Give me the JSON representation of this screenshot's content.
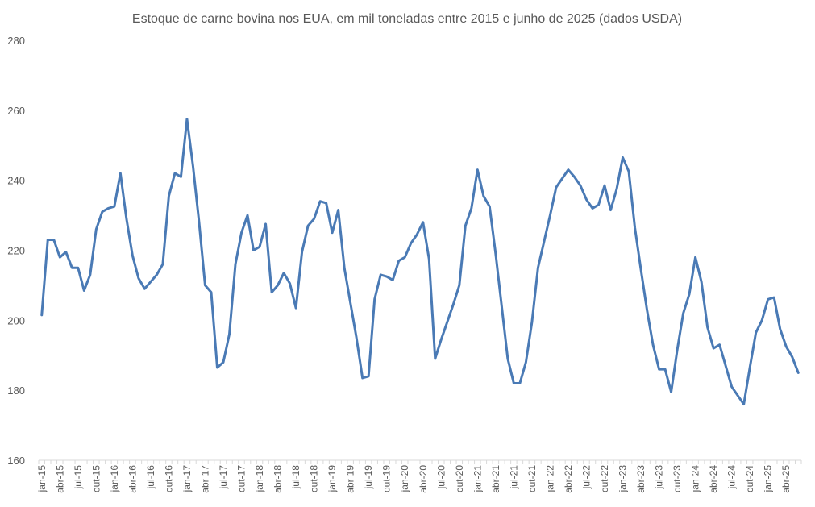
{
  "chart_data": {
    "type": "line",
    "title": "Estoque de carne bovina nos EUA, em mil toneladas entre 2015 e junho de 2025 (dados USDA)",
    "xlabel": "",
    "ylabel": "",
    "ylim": [
      160,
      280
    ],
    "yticks": [
      160,
      180,
      200,
      220,
      240,
      260,
      280
    ],
    "grid": false,
    "legend": "none",
    "line_color": "#4a7ab5",
    "x_tick_labels": [
      "jan-15",
      "abr-15",
      "jul-15",
      "out-15",
      "jan-16",
      "abr-16",
      "jul-16",
      "out-16",
      "jan-17",
      "abr-17",
      "jul-17",
      "out-17",
      "jan-18",
      "abr-18",
      "jul-18",
      "out-18",
      "jan-19",
      "abr-19",
      "jul-19",
      "out-19",
      "jan-20",
      "abr-20",
      "jul-20",
      "out-20",
      "jan-21",
      "abr-21",
      "jul-21",
      "out-21",
      "jan-22",
      "abr-22",
      "jul-22",
      "out-22",
      "jan-23",
      "abr-23",
      "jul-23",
      "out-23",
      "jan-24",
      "abr-24",
      "jul-24",
      "out-24",
      "jan-25",
      "abr-25"
    ],
    "series": [
      {
        "values": [
          201.5,
          223,
          223,
          218,
          219.5,
          215,
          215,
          208.5,
          213,
          226,
          231,
          232,
          232.5,
          242,
          229,
          218.5,
          212,
          209,
          211,
          213,
          216,
          235.5,
          242,
          241,
          257.5,
          244,
          228,
          210,
          208,
          186.5,
          188,
          196,
          216,
          225,
          230,
          220,
          221,
          227.5,
          208,
          210,
          213.5,
          210.5,
          203.5,
          219.5,
          227,
          229,
          234,
          233.5,
          225,
          231.5,
          215,
          205,
          195,
          183.5,
          184,
          206,
          213,
          212.5,
          211.5,
          217,
          218,
          222,
          224.5,
          228,
          217.5,
          189,
          194.5,
          199.5,
          204.5,
          210,
          227,
          232,
          243,
          235.5,
          232.5,
          219,
          204,
          189,
          182,
          182,
          188,
          199.5,
          215,
          222.5,
          230,
          238,
          240.5,
          243,
          241,
          238.5,
          234.5,
          232,
          233,
          238.5,
          231.5,
          237.5,
          246.5,
          242.5,
          226.5,
          214.5,
          203,
          193,
          186,
          186,
          179.5,
          191.5,
          202,
          207.5,
          218,
          211,
          198,
          192,
          193,
          187,
          181,
          178.5,
          176,
          186.5,
          196.5,
          200,
          206,
          206.5,
          197.5,
          192.5,
          189.5,
          185
        ]
      }
    ]
  }
}
